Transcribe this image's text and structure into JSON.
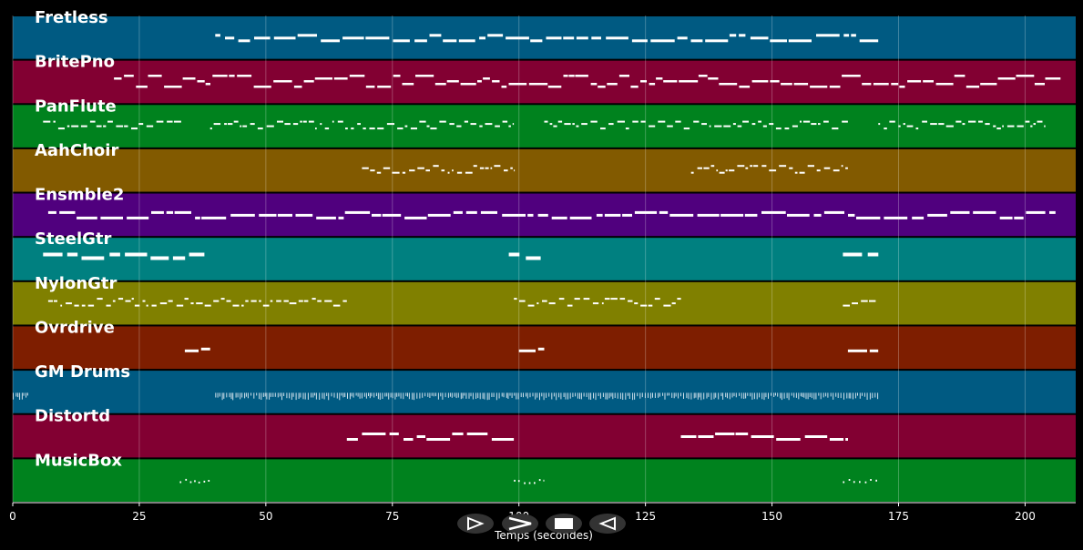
{
  "window": {
    "background": "#000000"
  },
  "timeline": {
    "x_min": 0,
    "x_max": 210,
    "ticks": [
      "0",
      "25",
      "50",
      "75",
      "100",
      "125",
      "150",
      "175",
      "200"
    ],
    "tick_values": [
      0,
      25,
      50,
      75,
      100,
      125,
      150,
      175,
      200
    ],
    "xlabel": "Temps (secondes)"
  },
  "tracks": [
    {
      "name": "Fretless",
      "color": "#005a82",
      "note_color": "#ffffff",
      "style": "mono",
      "segments": [
        [
          40,
          171
        ]
      ]
    },
    {
      "name": "BritePno",
      "color": "#820032",
      "note_color": "#ffffff",
      "style": "poly",
      "segments": [
        [
          20,
          207
        ]
      ]
    },
    {
      "name": "PanFlute",
      "color": "#00821e",
      "note_color": "#ffffff",
      "style": "fine",
      "segments": [
        [
          6,
          34
        ],
        [
          39,
          99
        ],
        [
          105,
          165
        ],
        [
          171,
          204
        ]
      ]
    },
    {
      "name": "AahChoir",
      "color": "#825a00",
      "note_color": "#ffffff",
      "style": "fine",
      "segments": [
        [
          69,
          99
        ],
        [
          134,
          165
        ]
      ]
    },
    {
      "name": "Ensmble2",
      "color": "#50007e",
      "note_color": "#ffffff",
      "style": "mono",
      "segments": [
        [
          7,
          206
        ]
      ]
    },
    {
      "name": "SteelGtr",
      "color": "#008080",
      "note_color": "#ffffff",
      "style": "block",
      "segments": [
        [
          6,
          39
        ],
        [
          98,
          105
        ],
        [
          164,
          171
        ]
      ]
    },
    {
      "name": "NylonGtr",
      "color": "#808000",
      "note_color": "#ffffff",
      "style": "fine",
      "segments": [
        [
          7,
          66
        ],
        [
          99,
          132
        ],
        [
          164,
          171
        ]
      ]
    },
    {
      "name": "Ovrdrive",
      "color": "#7e1e00",
      "note_color": "#ffffff",
      "style": "sparse",
      "segments": [
        [
          34,
          39
        ],
        [
          100,
          105
        ],
        [
          165,
          171
        ]
      ]
    },
    {
      "name": "GM Drums",
      "color": "#005a82",
      "note_color": "#cfe0ea",
      "style": "drums",
      "segments": [
        [
          0,
          3
        ],
        [
          40,
          171
        ]
      ]
    },
    {
      "name": "Distortd",
      "color": "#820032",
      "note_color": "#ffffff",
      "style": "mono",
      "segments": [
        [
          66,
          99
        ],
        [
          132,
          165
        ]
      ]
    },
    {
      "name": "MusicBox",
      "color": "#00821e",
      "note_color": "#ffffff",
      "style": "tiny",
      "segments": [
        [
          33,
          39
        ],
        [
          99,
          105
        ],
        [
          164,
          171
        ]
      ]
    }
  ],
  "transport": {
    "buttons": [
      {
        "name": "play-from-start-icon",
        "glyph": "play-start"
      },
      {
        "name": "play-icon",
        "glyph": "play"
      },
      {
        "name": "stop-icon",
        "glyph": "stop"
      },
      {
        "name": "rewind-icon",
        "glyph": "rewind"
      }
    ]
  }
}
